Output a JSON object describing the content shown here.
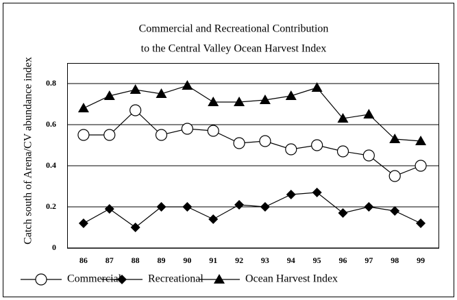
{
  "chart_data": {
    "type": "line",
    "title": [
      "Commercial and Recreational Contribution",
      "to the Central Valley Ocean Harvest Index"
    ],
    "ylabel": "Catch south of Arena/CV abundance index",
    "categories": [
      "86",
      "87",
      "88",
      "89",
      "90",
      "91",
      "92",
      "93",
      "94",
      "95",
      "96",
      "97",
      "98",
      "99"
    ],
    "series": [
      {
        "name": "Commercial",
        "color": "#000000",
        "marker": "circle",
        "values": [
          0.55,
          0.55,
          0.67,
          0.55,
          0.58,
          0.57,
          0.51,
          0.52,
          0.48,
          0.5,
          0.47,
          0.45,
          0.35,
          0.4
        ]
      },
      {
        "name": "Recreational",
        "color": "#000000",
        "marker": "diamond",
        "values": [
          0.12,
          0.19,
          0.1,
          0.2,
          0.2,
          0.14,
          0.21,
          0.2,
          0.26,
          0.27,
          0.17,
          0.2,
          0.18,
          0.12
        ]
      },
      {
        "name": "Ocean Harvest Index",
        "color": "#000000",
        "marker": "triangle",
        "values": [
          0.68,
          0.74,
          0.77,
          0.75,
          0.79,
          0.71,
          0.71,
          0.72,
          0.74,
          0.78,
          0.63,
          0.65,
          0.53,
          0.52
        ]
      }
    ],
    "ylim": [
      0,
      0.9
    ],
    "yticks": [
      0,
      0.2,
      0.4,
      0.6,
      0.8
    ],
    "grid": true,
    "legend": "bottom"
  }
}
